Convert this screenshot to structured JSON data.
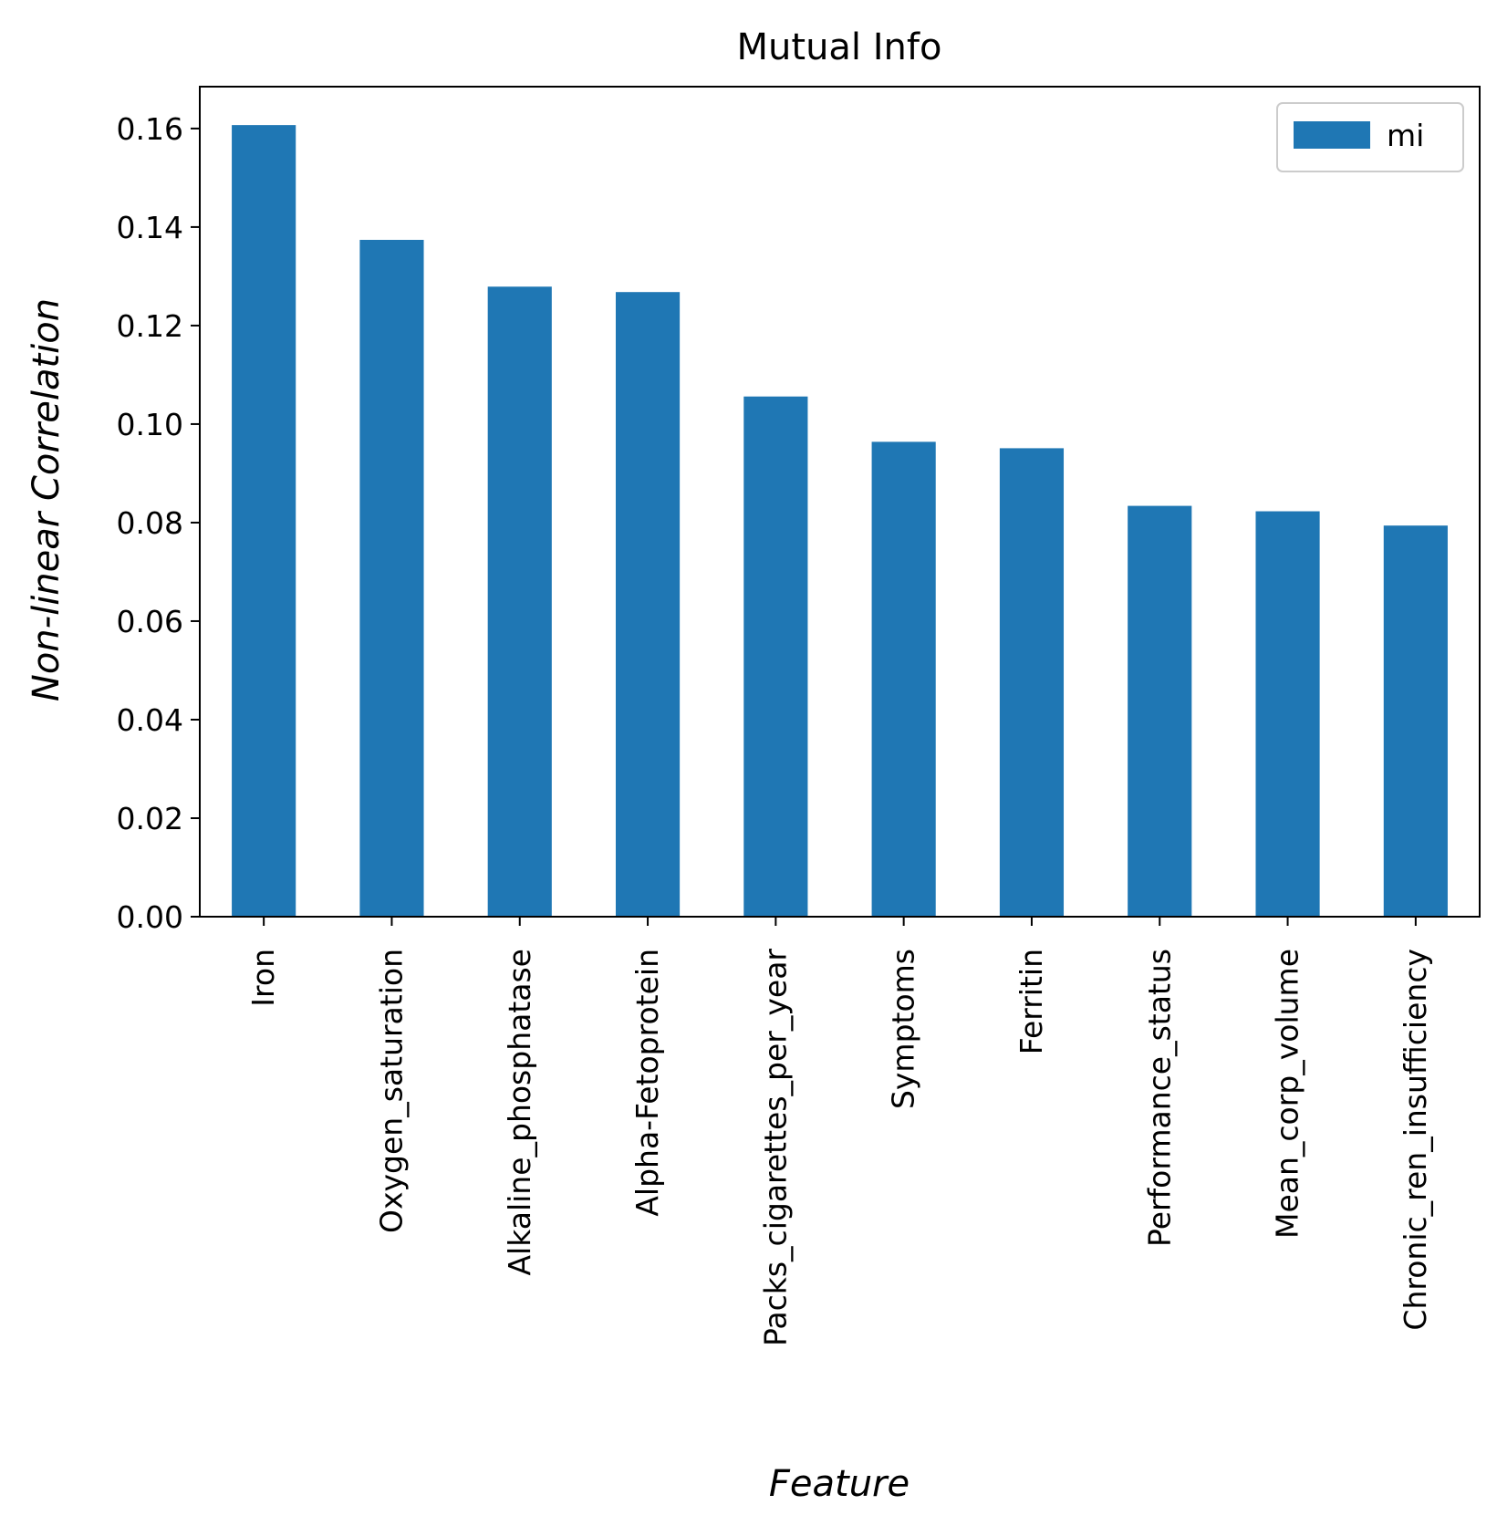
{
  "chart_data": {
    "type": "bar",
    "title": "Mutual Info",
    "xlabel": "Feature",
    "ylabel": "Non-linear Correlation",
    "categories": [
      "Iron",
      "Oxygen_saturation",
      "Alkaline_phosphatase",
      "Alpha-Fetoprotein",
      "Packs_cigarettes_per_year",
      "Symptoms",
      "Ferritin",
      "Performance_status",
      "Mean_corp_volume",
      "Chronic_ren_insufficiency"
    ],
    "series": [
      {
        "name": "mi",
        "color": "#1f77b4",
        "values": [
          0.1607,
          0.1374,
          0.1279,
          0.1268,
          0.1056,
          0.0964,
          0.0951,
          0.0834,
          0.0823,
          0.0794
        ]
      }
    ],
    "ylim": [
      0,
      0.1685
    ],
    "yticks": [
      0.0,
      0.02,
      0.04,
      0.06,
      0.08,
      0.1,
      0.12,
      0.14,
      0.16
    ],
    "ytick_labels": [
      "0.00",
      "0.02",
      "0.04",
      "0.06",
      "0.08",
      "0.10",
      "0.12",
      "0.14",
      "0.16"
    ],
    "legend": {
      "position": "top-right",
      "entries": [
        "mi"
      ]
    },
    "grid": false
  }
}
